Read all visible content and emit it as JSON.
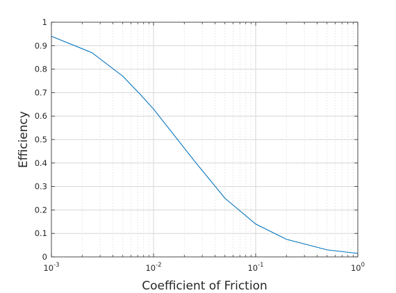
{
  "chart_data": {
    "type": "line",
    "title": "",
    "xlabel": "Coefficient of Friction",
    "ylabel": "Efficiency",
    "xscale": "log",
    "xlim": [
      0.001,
      1
    ],
    "ylim": [
      0,
      1
    ],
    "grid": true,
    "x_ticks": [
      {
        "value": 0.001,
        "base": "10",
        "exp": "-3"
      },
      {
        "value": 0.01,
        "base": "10",
        "exp": "-2"
      },
      {
        "value": 0.1,
        "base": "10",
        "exp": "-1"
      },
      {
        "value": 1,
        "base": "10",
        "exp": "0"
      }
    ],
    "y_ticks": [
      {
        "value": 0,
        "label": "0"
      },
      {
        "value": 0.1,
        "label": "0.1"
      },
      {
        "value": 0.2,
        "label": "0.2"
      },
      {
        "value": 0.3,
        "label": "0.3"
      },
      {
        "value": 0.4,
        "label": "0.4"
      },
      {
        "value": 0.5,
        "label": "0.5"
      },
      {
        "value": 0.6,
        "label": "0.6"
      },
      {
        "value": 0.7,
        "label": "0.7"
      },
      {
        "value": 0.8,
        "label": "0.8"
      },
      {
        "value": 0.9,
        "label": "0.9"
      },
      {
        "value": 1,
        "label": "1"
      }
    ],
    "series": [
      {
        "color": "#0072bd",
        "x": [
          0.001,
          0.0025,
          0.005,
          0.0075,
          0.01,
          0.025,
          0.05,
          0.1,
          0.2,
          0.5,
          1
        ],
        "y": [
          0.94,
          0.87,
          0.77,
          0.69,
          0.63,
          0.41,
          0.25,
          0.14,
          0.075,
          0.03,
          0.015
        ]
      }
    ]
  }
}
